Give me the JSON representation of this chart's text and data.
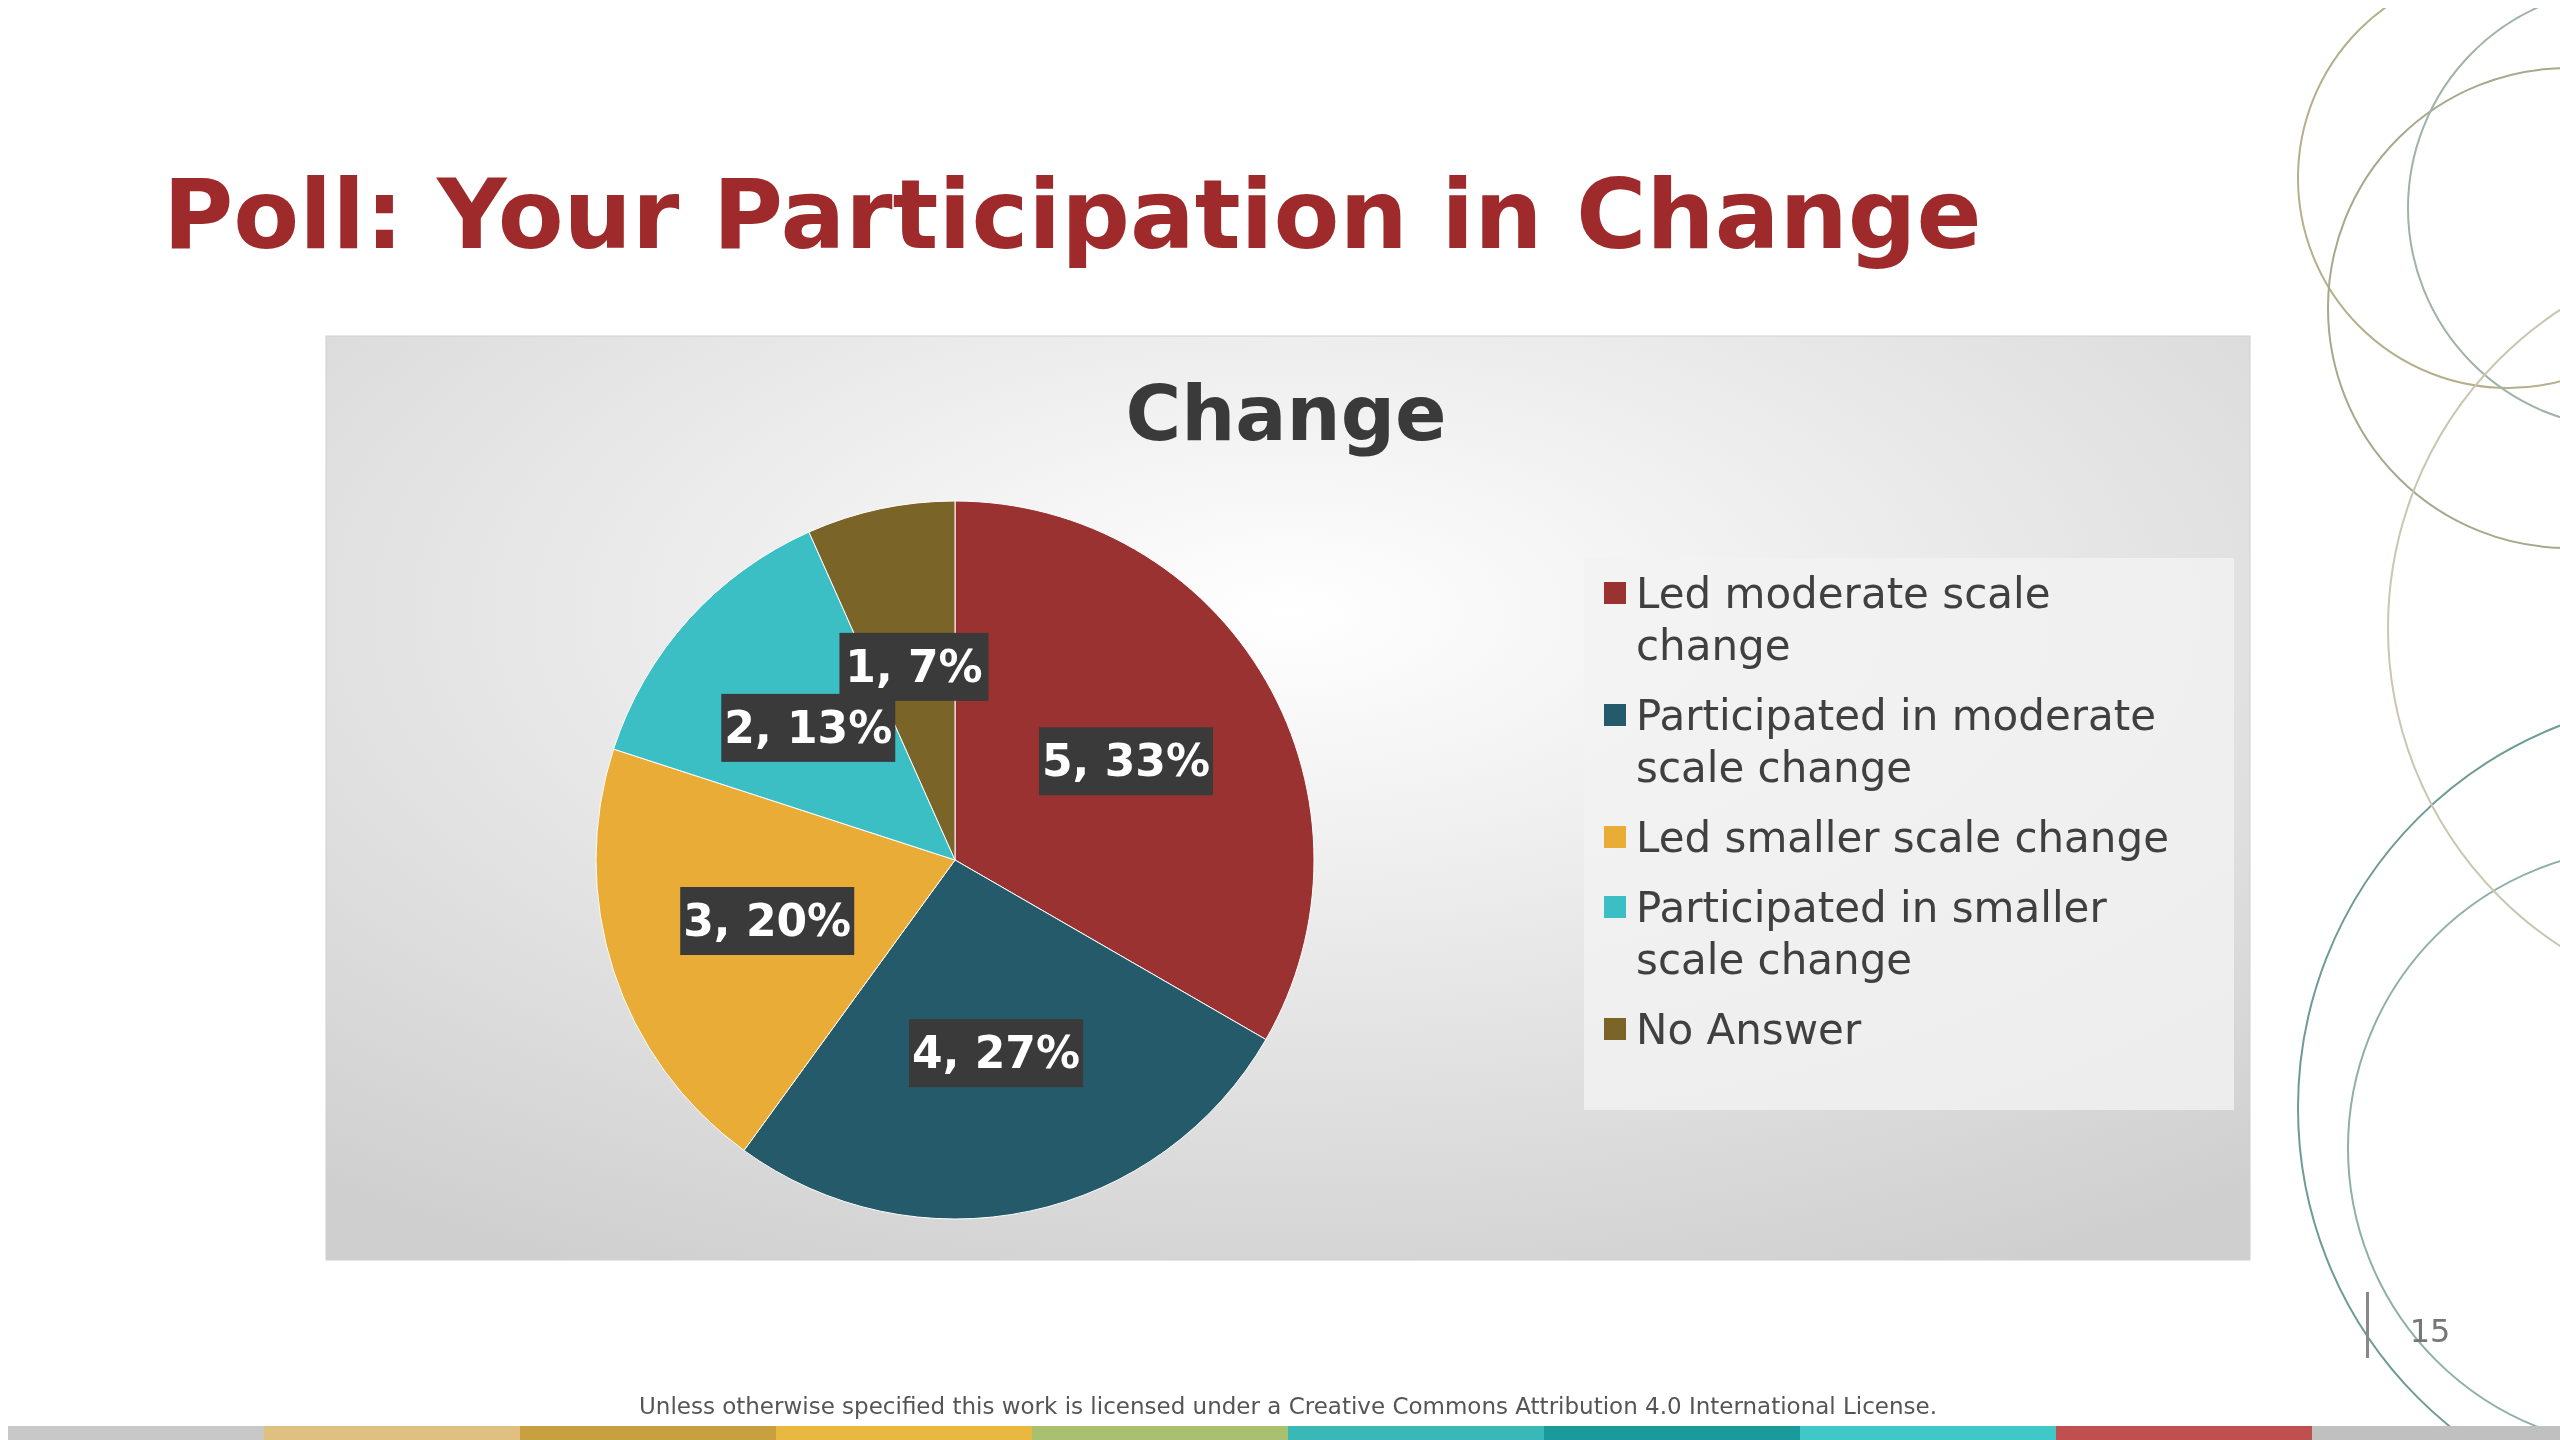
{
  "chart_data": {
    "type": "pie",
    "title": "Poll: Your Participation in Change",
    "subtitle": "Change",
    "categories": [
      "Led moderate scale change",
      "Participated in moderate scale change",
      "Led smaller scale change",
      "Participated in smaller scale change",
      "No Answer"
    ],
    "values": [
      5,
      4,
      3,
      2,
      1
    ],
    "value_labels": [
      "5, 33%",
      "4, 27%",
      "3, 20%",
      "2, 13%",
      "1, 7%"
    ],
    "colors": [
      "#9a3232",
      "#245a6a",
      "#e9ac37",
      "#3bbfc4",
      "#7b6428"
    ],
    "legend": "right",
    "annotations": [
      "Unless otherwise specified this work is licensed under a Creative Commons Attribution 4.0 International License.",
      "15"
    ]
  }
}
